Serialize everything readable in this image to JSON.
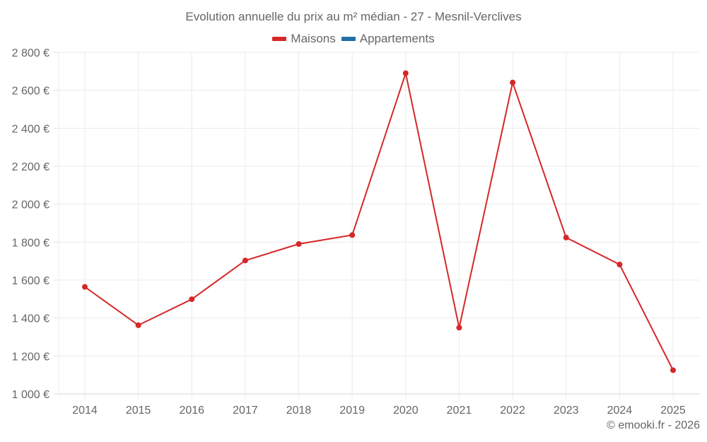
{
  "chart_data": {
    "type": "line",
    "title": "Evolution annuelle du prix au m² médian - 27 - Mesnil-Verclives",
    "xlabel": "",
    "ylabel": "",
    "categories": [
      "2014",
      "2015",
      "2016",
      "2017",
      "2018",
      "2019",
      "2020",
      "2021",
      "2022",
      "2023",
      "2024",
      "2025"
    ],
    "series": [
      {
        "name": "Maisons",
        "color": "#d62728",
        "values": [
          1564,
          1362,
          1499,
          1703,
          1790,
          1837,
          2690,
          1349,
          2641,
          1824,
          1682,
          1125
        ]
      },
      {
        "name": "Appartements",
        "color": "#1f6fa8",
        "values": []
      }
    ],
    "ylim": [
      1000,
      2800
    ],
    "yticks": [
      1000,
      1200,
      1400,
      1600,
      1800,
      2000,
      2200,
      2400,
      2600,
      2800
    ],
    "ytick_labels": [
      "1 000 €",
      "1 200 €",
      "1 400 €",
      "1 600 €",
      "1 800 €",
      "2 000 €",
      "2 200 €",
      "2 400 €",
      "2 600 €",
      "2 800 €"
    ],
    "grid": true,
    "legend_position": "top"
  },
  "legend": {
    "items": [
      {
        "label": "Maisons",
        "color": "#d62728"
      },
      {
        "label": "Appartements",
        "color": "#1f6fa8"
      }
    ]
  },
  "credit": "© emooki.fr - 2026"
}
